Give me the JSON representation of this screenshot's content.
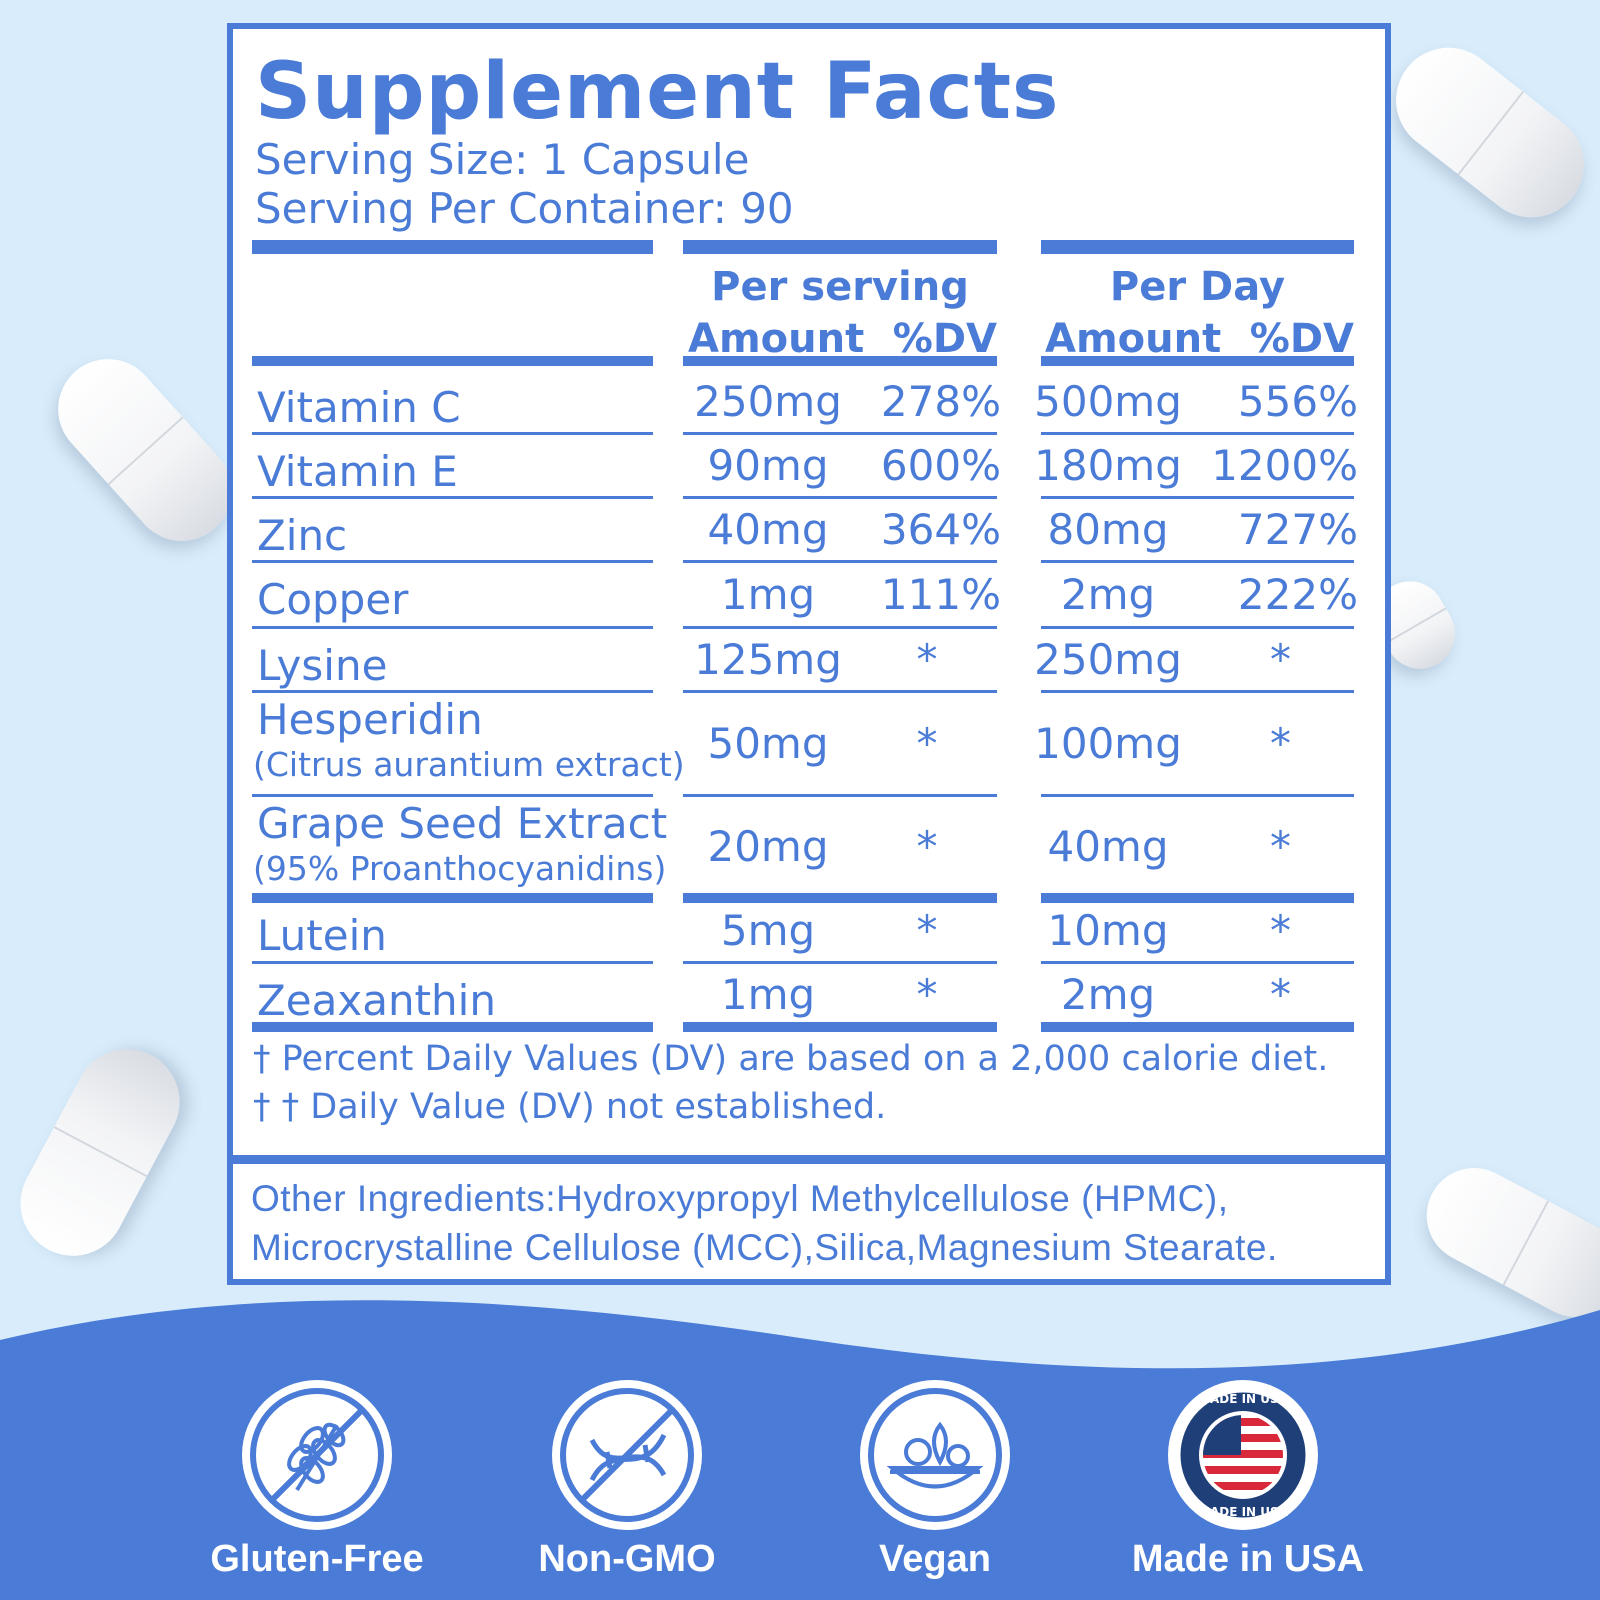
{
  "panel": {
    "title": "Supplement Facts",
    "serving_size": "Serving Size: 1 Capsule",
    "servings_per_container": "Serving Per Container: 90"
  },
  "columns": {
    "per_serving": "Per serving",
    "per_day": "Per Day",
    "amount": "Amount",
    "dv": "%DV"
  },
  "rows": [
    {
      "name": "Vitamin C",
      "note": "",
      "serving_amount": "250mg",
      "serving_dv": "278%",
      "day_amount": "500mg",
      "day_dv": "556%"
    },
    {
      "name": "Vitamin E",
      "note": "",
      "serving_amount": "90mg",
      "serving_dv": "600%",
      "day_amount": "180mg",
      "day_dv": "1200%"
    },
    {
      "name": "Zinc",
      "note": "",
      "serving_amount": "40mg",
      "serving_dv": "364%",
      "day_amount": "80mg",
      "day_dv": "727%"
    },
    {
      "name": "Copper",
      "note": "",
      "serving_amount": "1mg",
      "serving_dv": "111%",
      "day_amount": "2mg",
      "day_dv": "222%"
    },
    {
      "name": "Lysine",
      "note": "",
      "serving_amount": "125mg",
      "serving_dv": "*",
      "day_amount": "250mg",
      "day_dv": "*"
    },
    {
      "name": "Hesperidin",
      "note": "(Citrus aurantium extract)",
      "serving_amount": "50mg",
      "serving_dv": "*",
      "day_amount": "100mg",
      "day_dv": "*"
    },
    {
      "name": "Grape Seed Extract",
      "note": "(95% Proanthocyanidins)",
      "serving_amount": "20mg",
      "serving_dv": "*",
      "day_amount": "40mg",
      "day_dv": "*"
    },
    {
      "name": "Lutein",
      "note": "",
      "serving_amount": "5mg",
      "serving_dv": "*",
      "day_amount": "10mg",
      "day_dv": "*"
    },
    {
      "name": "Zeaxanthin",
      "note": "",
      "serving_amount": "1mg",
      "serving_dv": "*",
      "day_amount": "2mg",
      "day_dv": "*"
    }
  ],
  "footnotes": {
    "dv_basis": "† Percent Daily Values (DV) are based on a 2,000 calorie diet.",
    "dv_not_established": "† † Daily Value (DV) not established."
  },
  "other_ingredients": {
    "line1": "Other Ingredients:Hydroxypropyl Methylcellulose (HPMC),",
    "line2": "Microcrystalline Cellulose (MCC),Silica,Magnesium Stearate."
  },
  "badges": [
    {
      "label": "Gluten-Free",
      "icon": "gluten-free-wheat-icon"
    },
    {
      "label": "Non-GMO",
      "icon": "non-gmo-dna-icon"
    },
    {
      "label": "Vegan",
      "icon": "vegan-salad-bowl-icon"
    },
    {
      "label": "Made in USA",
      "icon": "made-in-usa-flag-seal-icon",
      "seal_text": "MADE IN USA"
    }
  ],
  "colors": {
    "accent": "#4a7bd6",
    "background": "#d8ecfb",
    "panel": "#ffffff"
  }
}
